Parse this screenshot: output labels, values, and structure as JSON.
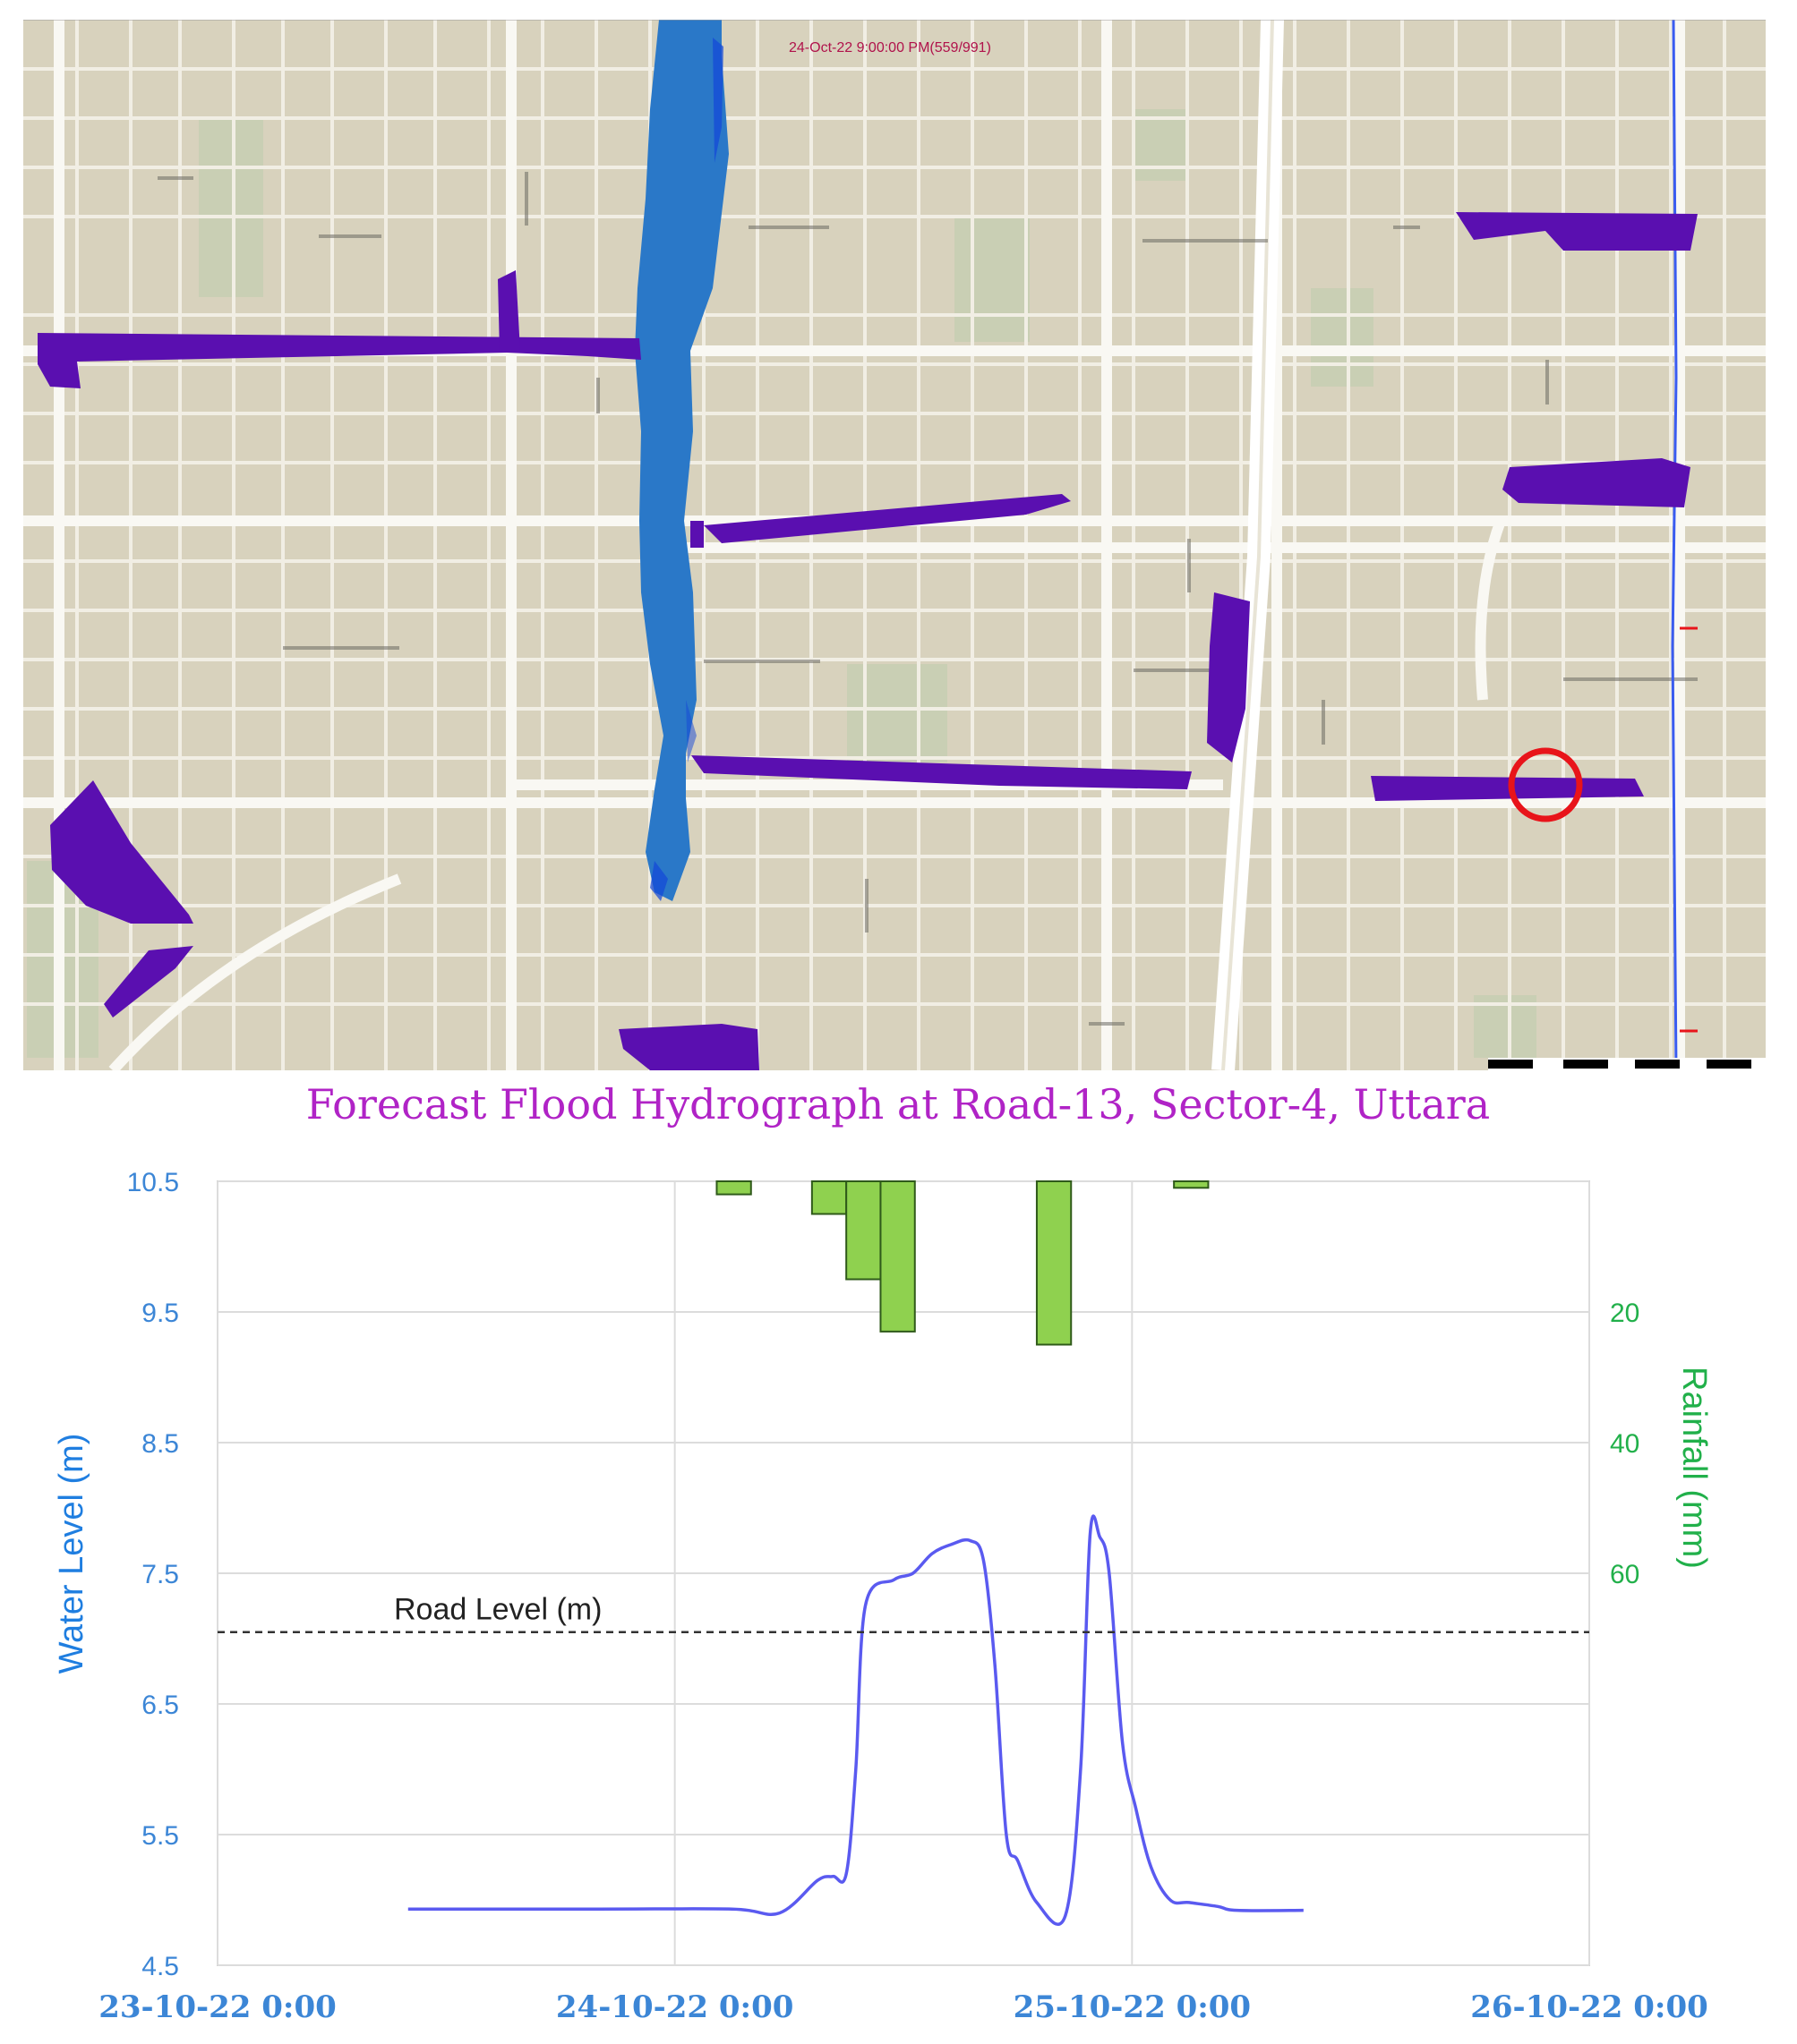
{
  "map": {
    "timestamp": "24-Oct-22 9:00:00 PM(559/991)",
    "colors": {
      "background": "#d8d2bd",
      "streets": "#f7f5ee",
      "parks": "#c9cfb4",
      "channel": "#2a78c8",
      "channel_deep": "#1346d8",
      "flood": "#5a0fb0",
      "marker": "#e8141a",
      "canal_line": "#3a5cf0"
    },
    "marker_icon": "red-circle-location-marker"
  },
  "chart_data": {
    "type": "line",
    "title": "Forecast Flood Hydrograph at Road-13, Sector-4, Uttara",
    "x_ticks": [
      "23-10-22 0:00",
      "24-10-22 0:00",
      "25-10-22 0:00",
      "26-10-22 0:00"
    ],
    "xlim_hours": [
      0,
      72
    ],
    "y_left": {
      "label": "Water Level (m)",
      "lim": [
        4.5,
        10.5
      ],
      "ticks": [
        "4.5",
        "5.5",
        "6.5",
        "7.5",
        "8.5",
        "9.5",
        "10.5"
      ]
    },
    "y_right": {
      "label": "Rainfall (mm)",
      "lim": [
        0,
        60
      ],
      "inverted": true,
      "ticks": [
        "20",
        "40",
        "60"
      ]
    },
    "road_level": {
      "label": "Road Level (m)",
      "value": 7.05
    },
    "series": [
      {
        "type": "line",
        "color": "#5a5af0",
        "x_hours": [
          10,
          20,
          27,
          29.5,
          31.5,
          32.3,
          33,
          33.5,
          34,
          35.5,
          36.5,
          37.5,
          38.5,
          39.5,
          40.2,
          40.8,
          41.4,
          42,
          43,
          44.5,
          45.3,
          45.8,
          46.3,
          46.8,
          47.5,
          48.2,
          49,
          50,
          51,
          52.5,
          53.5,
          57
        ],
        "values": [
          4.93,
          4.93,
          4.93,
          4.9,
          5.15,
          5.18,
          5.2,
          6.0,
          7.25,
          7.45,
          7.5,
          7.65,
          7.72,
          7.75,
          7.6,
          6.8,
          5.5,
          5.3,
          4.98,
          4.88,
          6.0,
          7.8,
          7.78,
          7.5,
          6.2,
          5.7,
          5.25,
          5.0,
          4.98,
          4.95,
          4.92,
          4.92
        ]
      },
      {
        "type": "bar",
        "color": "#8fd14f",
        "edge_color": "#2f5a1a",
        "bars": [
          {
            "x_start": 26.2,
            "x_end": 28.0,
            "mm": 2
          },
          {
            "x_start": 31.2,
            "x_end": 33.0,
            "mm": 5
          },
          {
            "x_start": 33.0,
            "x_end": 34.8,
            "mm": 15
          },
          {
            "x_start": 34.8,
            "x_end": 36.6,
            "mm": 23
          },
          {
            "x_start": 43.0,
            "x_end": 44.8,
            "mm": 25
          },
          {
            "x_start": 50.2,
            "x_end": 52.0,
            "mm": 1
          }
        ]
      }
    ],
    "grid": true
  }
}
